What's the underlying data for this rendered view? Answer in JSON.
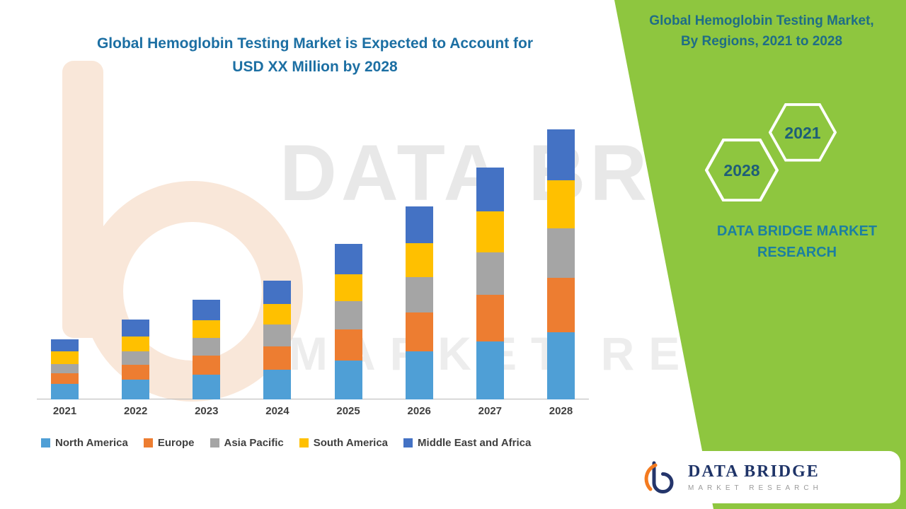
{
  "left": {
    "title_line1": "Global Hemoglobin Testing Market is Expected to Account for",
    "title_line2": "USD XX Million by 2028"
  },
  "watermark": {
    "line1": "DATA BRIDGE",
    "line2": "MARKET RESEARCH"
  },
  "chart_data": {
    "type": "bar",
    "stacked": true,
    "title": "Global Hemoglobin Testing Market is Expected to Account for USD XX Million by 2028",
    "xlabel": "",
    "ylabel": "",
    "y_axis_visible": false,
    "grid": false,
    "legend_position": "bottom",
    "ylim": [
      0,
      400
    ],
    "note": "values are relative units estimated from bar pixel heights; actual figures shown as USD XX Million",
    "categories": [
      "2021",
      "2022",
      "2023",
      "2024",
      "2025",
      "2026",
      "2027",
      "2028"
    ],
    "series": [
      {
        "name": "North America",
        "color": "#4f9fd6",
        "values": [
          22,
          28,
          35,
          42,
          55,
          68,
          82,
          95
        ]
      },
      {
        "name": "Europe",
        "color": "#ed7d31",
        "values": [
          15,
          21,
          27,
          33,
          44,
          55,
          66,
          77
        ]
      },
      {
        "name": "Asia Pacific",
        "color": "#a5a5a5",
        "values": [
          13,
          19,
          25,
          31,
          40,
          50,
          60,
          70
        ]
      },
      {
        "name": "South America",
        "color": "#ffc000",
        "values": [
          18,
          21,
          25,
          29,
          38,
          48,
          58,
          68
        ]
      },
      {
        "name": "Middle East and Africa",
        "color": "#4472c4",
        "values": [
          17,
          24,
          29,
          33,
          43,
          52,
          62,
          72
        ]
      }
    ]
  },
  "right_panel": {
    "heading_line1": "Global Hemoglobin Testing Market,",
    "heading_line2": "By Regions, 2021 to 2028",
    "hex_2021": "2021",
    "hex_2028": "2028",
    "brand_line1": "DATA BRIDGE MARKET",
    "brand_line2": "RESEARCH",
    "accent_green": "#8ec63f",
    "accent_teal": "#1c7fa0"
  },
  "logo_card": {
    "brand": "DATA BRIDGE",
    "sub": "MARKET RESEARCH"
  }
}
